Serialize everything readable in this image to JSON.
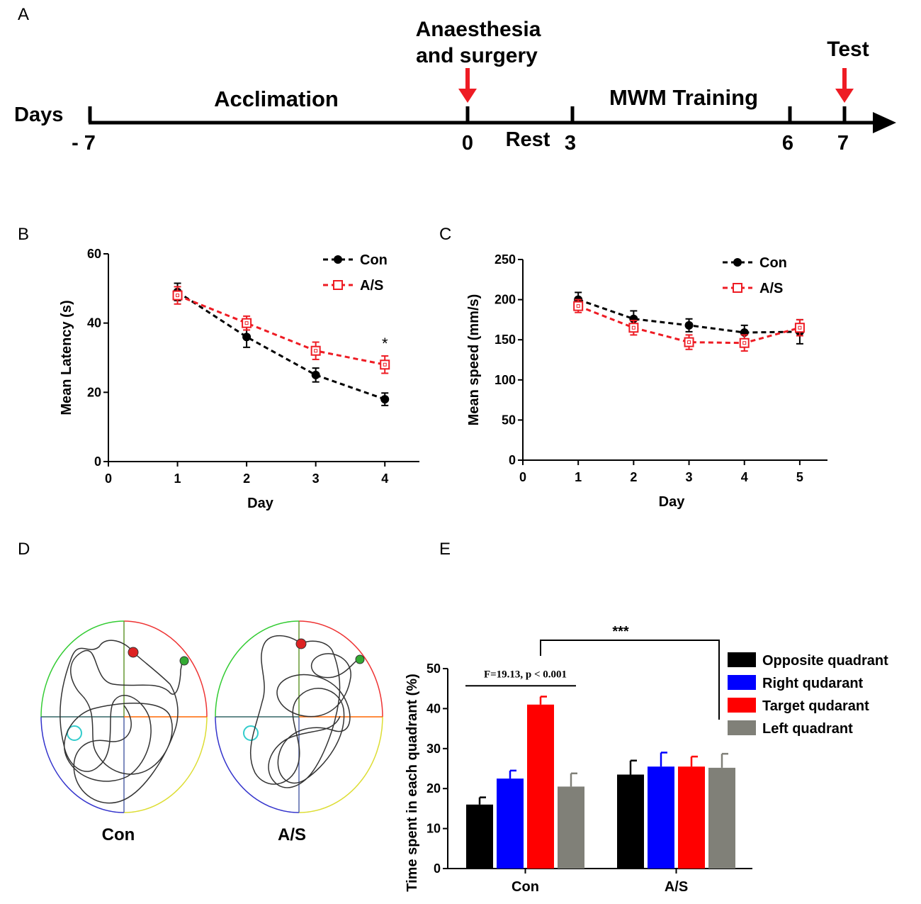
{
  "panels": {
    "A": "A",
    "B": "B",
    "C": "C",
    "D": "D",
    "E": "E"
  },
  "timeline": {
    "days_label": "Days",
    "phases": [
      "Acclimation",
      "Rest",
      "MWM Training"
    ],
    "events": [
      "Anaesthesia",
      "and surgery",
      "Test"
    ],
    "ticks": [
      "- 7",
      "0",
      "3",
      "6",
      "7"
    ],
    "colors": {
      "arrow": "#ee1c24",
      "line": "#000000"
    }
  },
  "track_plots": {
    "labels": [
      "Con",
      "A/S"
    ],
    "quadrant_colors": {
      "top_left": "#33cc33",
      "top_right": "#ee3333",
      "bottom_left": "#3333cc",
      "bottom_right": "#dddd33",
      "horizontal": "#ff6600",
      "vertical": "#669933"
    },
    "platform_color": "#33cccc"
  },
  "chart_data": [
    {
      "type": "line",
      "panel": "B",
      "xlabel": "Day",
      "ylabel": "Mean Latency (s)",
      "xlim": [
        0,
        4.5
      ],
      "ylim": [
        0,
        60
      ],
      "xticks": [
        "0",
        "1",
        "2",
        "3",
        "4"
      ],
      "yticks": [
        "0",
        "20",
        "40",
        "60"
      ],
      "legend": "top-right",
      "annotations": [
        {
          "x": 4,
          "text": "*"
        }
      ],
      "series": [
        {
          "name": "Con",
          "color": "#000000",
          "marker": "filled-circle",
          "x": [
            1,
            2,
            3,
            4
          ],
          "values": [
            49,
            36,
            25,
            18
          ],
          "errors": [
            2.5,
            3,
            2,
            1.8
          ]
        },
        {
          "name": "A/S",
          "color": "#ee1c24",
          "marker": "open-square",
          "x": [
            1,
            2,
            3,
            4
          ],
          "values": [
            48,
            40,
            32,
            28
          ],
          "errors": [
            2.5,
            2,
            2.5,
            2.5
          ]
        }
      ]
    },
    {
      "type": "line",
      "panel": "C",
      "xlabel": "Day",
      "ylabel": "Mean speed (mm/s)",
      "xlim": [
        0,
        5.5
      ],
      "ylim": [
        0,
        250
      ],
      "xticks": [
        "0",
        "1",
        "2",
        "3",
        "4",
        "5"
      ],
      "yticks": [
        "0",
        "50",
        "100",
        "150",
        "200",
        "250"
      ],
      "legend": "top-right",
      "series": [
        {
          "name": "Con",
          "color": "#000000",
          "marker": "filled-circle",
          "x": [
            1,
            2,
            3,
            4,
            5
          ],
          "values": [
            200,
            176,
            168,
            159,
            160
          ],
          "errors": [
            9,
            10,
            8,
            9,
            15
          ]
        },
        {
          "name": "A/S",
          "color": "#ee1c24",
          "marker": "open-square",
          "x": [
            1,
            2,
            3,
            4,
            5
          ],
          "values": [
            192,
            165,
            147,
            146,
            165
          ],
          "errors": [
            8,
            9,
            9,
            10,
            10
          ]
        }
      ]
    },
    {
      "type": "bar",
      "panel": "E",
      "ylabel": "Time spent in each quadrant (%)",
      "ylim": [
        0,
        50
      ],
      "yticks": [
        "0",
        "10",
        "20",
        "30",
        "40",
        "50"
      ],
      "categories": [
        "Con",
        "A/S"
      ],
      "legend": "right",
      "stat_text": "F=19.13, p < 0.001",
      "bracket_text": "***",
      "series": [
        {
          "name": "Opposite quadrant",
          "color": "#000000",
          "values": [
            16,
            23.5
          ],
          "errors": [
            1.8,
            3.5
          ]
        },
        {
          "name": "Right qudarant",
          "color": "#0000ff",
          "values": [
            22.5,
            25.5
          ],
          "errors": [
            2,
            3.5
          ]
        },
        {
          "name": "Target qudarant",
          "color": "#ff0000",
          "values": [
            41,
            25.5
          ],
          "errors": [
            2,
            2.5
          ]
        },
        {
          "name": "Left quadrant",
          "color": "#808078",
          "values": [
            20.5,
            25.2
          ],
          "errors": [
            3.3,
            3.5
          ]
        }
      ]
    }
  ]
}
